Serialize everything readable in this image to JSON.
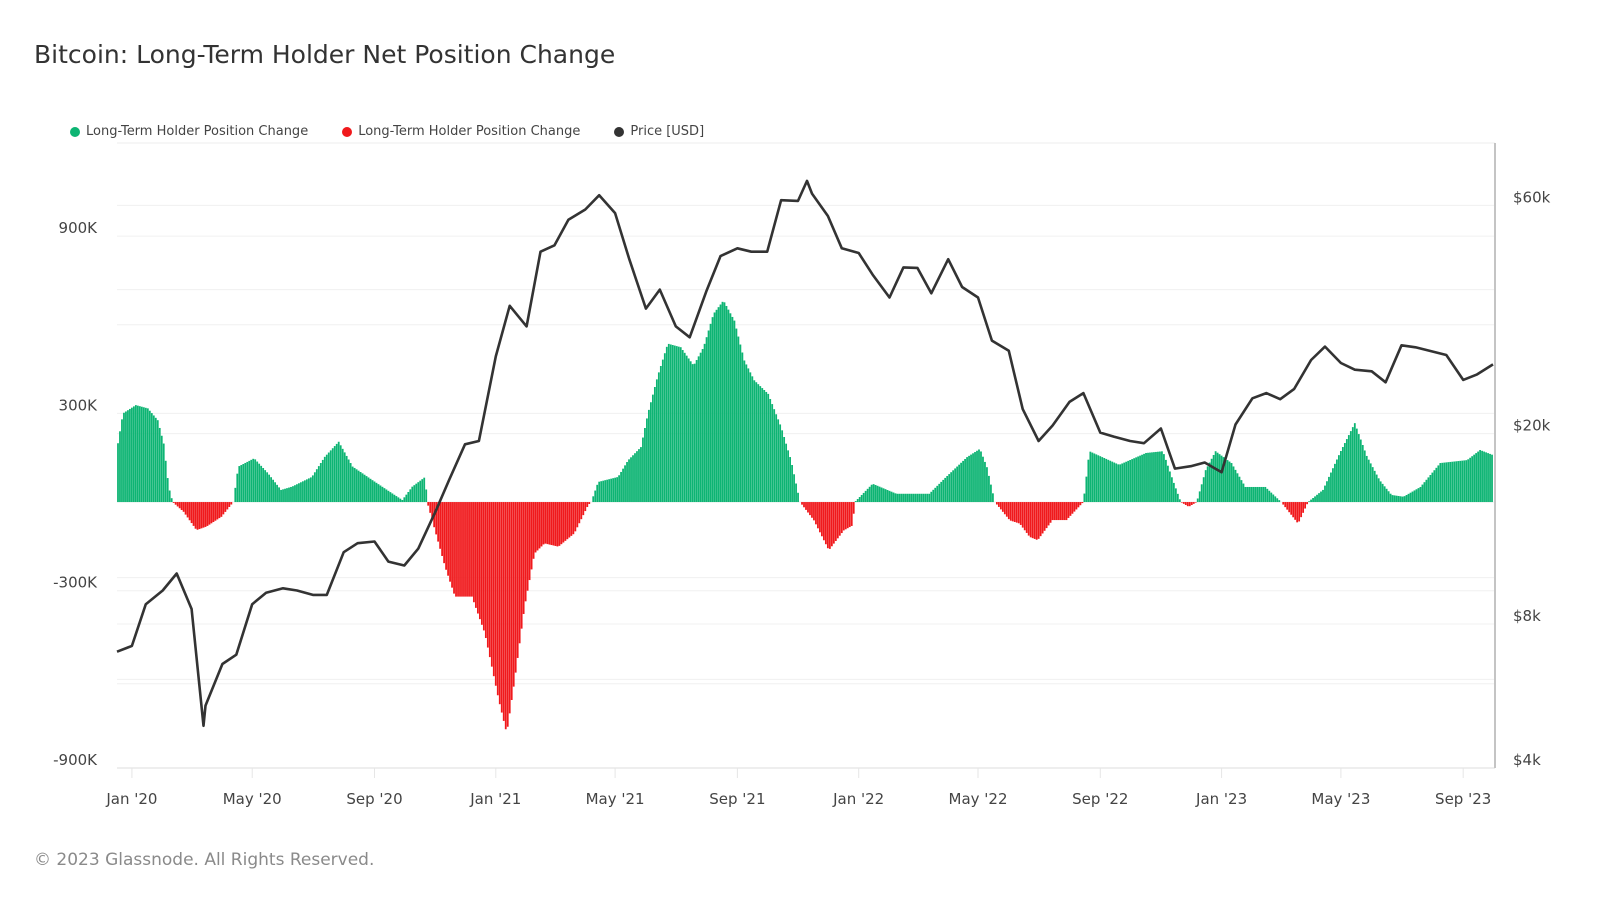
{
  "title": "Bitcoin: Long-Term Holder Net Position Change",
  "footer": "© 2023 Glassnode. All Rights Reserved.",
  "legend": [
    {
      "label": "Long-Term Holder Position Change",
      "color": "#0db473"
    },
    {
      "label": "Long-Term Holder Position Change",
      "color": "#f0191c"
    },
    {
      "label": "Price [USD]",
      "color": "#333333"
    }
  ],
  "chart_data": {
    "type": "bar+line",
    "title": "Bitcoin: Long-Term Holder Net Position Change",
    "legend_position": "top-left",
    "grid": true,
    "x_ticks": [
      "Jan '20",
      "May '20",
      "Sep '20",
      "Jan '21",
      "May '21",
      "Sep '21",
      "Jan '22",
      "May '22",
      "Sep '22",
      "Jan '23",
      "May '23",
      "Sep '23"
    ],
    "x_tick_dates": [
      "2020-01-01",
      "2020-05-01",
      "2020-09-01",
      "2021-01-01",
      "2021-05-01",
      "2021-09-01",
      "2022-01-01",
      "2022-05-01",
      "2022-09-01",
      "2023-01-01",
      "2023-05-01",
      "2023-09-01"
    ],
    "xlim": [
      "2019-12-17",
      "2023-10-03"
    ],
    "left_axis": {
      "scale": "linear",
      "ylim": [
        -900000,
        1215000
      ],
      "tick_labels": [
        "900K",
        "300K",
        "-300K",
        "-900K"
      ],
      "tick_values": [
        900000,
        300000,
        -300000,
        -900000
      ],
      "grid_values": [
        900000,
        600000,
        300000,
        0,
        -300000,
        -600000,
        -900000
      ]
    },
    "right_axis": {
      "scale": "log",
      "ylim": [
        4000,
        81000
      ],
      "tick_labels": [
        "$60k",
        "$20k",
        "$8k",
        "$4k"
      ],
      "tick_values": [
        60000,
        20000,
        8000,
        4000
      ],
      "grid_values": [
        60000,
        40000,
        20000,
        10000,
        8000,
        6000,
        4000
      ]
    },
    "series": [
      {
        "name": "Long-Term Holder Position Change",
        "type": "bar",
        "axis": "left",
        "positive_color": "#0db473",
        "negative_color": "#f0191c",
        "points": [
          [
            "2019-12-18",
            199000
          ],
          [
            "2019-12-23",
            300000
          ],
          [
            "2020-01-05",
            328000
          ],
          [
            "2020-01-17",
            317000
          ],
          [
            "2020-01-27",
            277000
          ],
          [
            "2020-02-02",
            198000
          ],
          [
            "2020-02-07",
            52000
          ],
          [
            "2020-02-11",
            0
          ],
          [
            "2020-02-22",
            -33000
          ],
          [
            "2020-03-06",
            -95000
          ],
          [
            "2020-03-16",
            -83000
          ],
          [
            "2020-03-31",
            -50000
          ],
          [
            "2020-04-12",
            0
          ],
          [
            "2020-04-17",
            120000
          ],
          [
            "2020-05-03",
            148000
          ],
          [
            "2020-05-17",
            97000
          ],
          [
            "2020-05-30",
            41000
          ],
          [
            "2020-06-10",
            52000
          ],
          [
            "2020-06-30",
            85000
          ],
          [
            "2020-07-13",
            153000
          ],
          [
            "2020-07-27",
            204000
          ],
          [
            "2020-08-10",
            120000
          ],
          [
            "2020-08-30",
            74000
          ],
          [
            "2020-09-19",
            29000
          ],
          [
            "2020-09-29",
            7000
          ],
          [
            "2020-10-09",
            52000
          ],
          [
            "2020-10-22",
            85000
          ],
          [
            "2020-10-24",
            0
          ],
          [
            "2020-11-11",
            -219000
          ],
          [
            "2020-11-21",
            -320000
          ],
          [
            "2020-12-08",
            -320000
          ],
          [
            "2020-12-21",
            -444000
          ],
          [
            "2021-01-04",
            -670000
          ],
          [
            "2021-01-12",
            -783000
          ],
          [
            "2021-01-20",
            -602000
          ],
          [
            "2021-01-30",
            -354000
          ],
          [
            "2021-02-09",
            -174000
          ],
          [
            "2021-02-19",
            -140000
          ],
          [
            "2021-03-05",
            -151000
          ],
          [
            "2021-03-21",
            -106000
          ],
          [
            "2021-04-04",
            -10000
          ],
          [
            "2021-04-07",
            0
          ],
          [
            "2021-04-14",
            68000
          ],
          [
            "2021-05-04",
            85000
          ],
          [
            "2021-05-14",
            141000
          ],
          [
            "2021-05-27",
            186000
          ],
          [
            "2021-06-03",
            299000
          ],
          [
            "2021-06-13",
            428000
          ],
          [
            "2021-06-23",
            536000
          ],
          [
            "2021-07-06",
            524000
          ],
          [
            "2021-07-19",
            462000
          ],
          [
            "2021-07-29",
            524000
          ],
          [
            "2021-08-08",
            637000
          ],
          [
            "2021-08-18",
            682000
          ],
          [
            "2021-08-29",
            614000
          ],
          [
            "2021-09-08",
            479000
          ],
          [
            "2021-09-18",
            412000
          ],
          [
            "2021-10-02",
            366000
          ],
          [
            "2021-10-15",
            254000
          ],
          [
            "2021-10-25",
            141000
          ],
          [
            "2021-11-03",
            0
          ],
          [
            "2021-11-17",
            -62000
          ],
          [
            "2021-12-02",
            -163000
          ],
          [
            "2021-12-17",
            -96000
          ],
          [
            "2021-12-26",
            -79000
          ],
          [
            "2021-12-28",
            0
          ],
          [
            "2022-01-02",
            17000
          ],
          [
            "2022-01-15",
            62000
          ],
          [
            "2022-02-08",
            28000
          ],
          [
            "2022-02-24",
            28000
          ],
          [
            "2022-03-13",
            28000
          ],
          [
            "2022-03-30",
            85000
          ],
          [
            "2022-04-20",
            152000
          ],
          [
            "2022-05-03",
            180000
          ],
          [
            "2022-05-10",
            118000
          ],
          [
            "2022-05-18",
            0
          ],
          [
            "2022-06-02",
            -62000
          ],
          [
            "2022-06-12",
            -73000
          ],
          [
            "2022-06-22",
            -118000
          ],
          [
            "2022-06-30",
            -129000
          ],
          [
            "2022-07-15",
            -61000
          ],
          [
            "2022-07-29",
            -61000
          ],
          [
            "2022-08-15",
            0
          ],
          [
            "2022-08-21",
            172000
          ],
          [
            "2022-09-20",
            126000
          ],
          [
            "2022-10-17",
            166000
          ],
          [
            "2022-11-03",
            172000
          ],
          [
            "2022-11-13",
            74000
          ],
          [
            "2022-11-21",
            0
          ],
          [
            "2022-11-29",
            -16000
          ],
          [
            "2022-12-07",
            0
          ],
          [
            "2022-12-16",
            108000
          ],
          [
            "2022-12-26",
            172000
          ],
          [
            "2023-01-11",
            132000
          ],
          [
            "2023-01-25",
            51000
          ],
          [
            "2023-02-14",
            51000
          ],
          [
            "2023-03-02",
            0
          ],
          [
            "2023-03-19",
            -73000
          ],
          [
            "2023-03-29",
            0
          ],
          [
            "2023-04-13",
            41000
          ],
          [
            "2023-04-30",
            166000
          ],
          [
            "2023-05-15",
            267000
          ],
          [
            "2023-05-27",
            156000
          ],
          [
            "2023-06-09",
            74000
          ],
          [
            "2023-06-21",
            24000
          ],
          [
            "2023-07-03",
            18000
          ],
          [
            "2023-07-20",
            51000
          ],
          [
            "2023-08-09",
            132000
          ],
          [
            "2023-09-05",
            142000
          ],
          [
            "2023-09-18",
            176000
          ],
          [
            "2023-10-01",
            159000
          ]
        ]
      },
      {
        "name": "Price [USD]",
        "type": "line",
        "axis": "right",
        "color": "#333333",
        "points": [
          [
            "2019-12-17",
            7000
          ],
          [
            "2020-01-01",
            7200
          ],
          [
            "2020-01-15",
            8800
          ],
          [
            "2020-02-01",
            9400
          ],
          [
            "2020-02-15",
            10200
          ],
          [
            "2020-03-01",
            8600
          ],
          [
            "2020-03-13",
            4900
          ],
          [
            "2020-03-15",
            5400
          ],
          [
            "2020-04-01",
            6600
          ],
          [
            "2020-04-15",
            6900
          ],
          [
            "2020-05-01",
            8800
          ],
          [
            "2020-05-15",
            9300
          ],
          [
            "2020-06-01",
            9500
          ],
          [
            "2020-06-15",
            9400
          ],
          [
            "2020-07-01",
            9200
          ],
          [
            "2020-07-15",
            9200
          ],
          [
            "2020-08-01",
            11300
          ],
          [
            "2020-08-15",
            11800
          ],
          [
            "2020-09-01",
            11900
          ],
          [
            "2020-09-15",
            10800
          ],
          [
            "2020-10-01",
            10600
          ],
          [
            "2020-10-15",
            11500
          ],
          [
            "2020-11-01",
            13700
          ],
          [
            "2020-11-15",
            16000
          ],
          [
            "2020-12-01",
            19000
          ],
          [
            "2020-12-15",
            19300
          ],
          [
            "2021-01-01",
            29000
          ],
          [
            "2021-01-15",
            37000
          ],
          [
            "2021-02-01",
            33500
          ],
          [
            "2021-02-15",
            48000
          ],
          [
            "2021-03-01",
            49500
          ],
          [
            "2021-03-15",
            56000
          ],
          [
            "2021-04-01",
            58800
          ],
          [
            "2021-04-15",
            63000
          ],
          [
            "2021-05-01",
            57800
          ],
          [
            "2021-05-15",
            46500
          ],
          [
            "2021-06-01",
            36500
          ],
          [
            "2021-06-15",
            40000
          ],
          [
            "2021-07-01",
            33500
          ],
          [
            "2021-07-15",
            31800
          ],
          [
            "2021-08-01",
            39800
          ],
          [
            "2021-08-15",
            47000
          ],
          [
            "2021-09-01",
            48800
          ],
          [
            "2021-09-15",
            48000
          ],
          [
            "2021-10-01",
            48000
          ],
          [
            "2021-10-15",
            61500
          ],
          [
            "2021-11-01",
            61300
          ],
          [
            "2021-11-10",
            67500
          ],
          [
            "2021-11-15",
            63500
          ],
          [
            "2021-12-01",
            57000
          ],
          [
            "2021-12-15",
            48800
          ],
          [
            "2022-01-01",
            47700
          ],
          [
            "2022-01-15",
            43000
          ],
          [
            "2022-02-01",
            38500
          ],
          [
            "2022-02-15",
            44500
          ],
          [
            "2022-03-01",
            44400
          ],
          [
            "2022-03-15",
            39300
          ],
          [
            "2022-04-01",
            46300
          ],
          [
            "2022-04-15",
            40500
          ],
          [
            "2022-05-01",
            38500
          ],
          [
            "2022-05-15",
            31300
          ],
          [
            "2022-06-01",
            29800
          ],
          [
            "2022-06-15",
            22500
          ],
          [
            "2022-07-01",
            19300
          ],
          [
            "2022-07-15",
            20800
          ],
          [
            "2022-08-01",
            23300
          ],
          [
            "2022-08-15",
            24300
          ],
          [
            "2022-09-01",
            20100
          ],
          [
            "2022-09-15",
            19700
          ],
          [
            "2022-10-01",
            19300
          ],
          [
            "2022-10-15",
            19100
          ],
          [
            "2022-11-01",
            20500
          ],
          [
            "2022-11-15",
            16900
          ],
          [
            "2022-12-01",
            17100
          ],
          [
            "2022-12-15",
            17400
          ],
          [
            "2023-01-01",
            16600
          ],
          [
            "2023-01-15",
            20900
          ],
          [
            "2023-02-01",
            23700
          ],
          [
            "2023-02-15",
            24300
          ],
          [
            "2023-03-01",
            23600
          ],
          [
            "2023-03-15",
            24800
          ],
          [
            "2023-04-01",
            28500
          ],
          [
            "2023-04-15",
            30400
          ],
          [
            "2023-05-01",
            28100
          ],
          [
            "2023-05-15",
            27200
          ],
          [
            "2023-06-01",
            27000
          ],
          [
            "2023-06-15",
            25600
          ],
          [
            "2023-07-01",
            30600
          ],
          [
            "2023-07-15",
            30300
          ],
          [
            "2023-08-01",
            29700
          ],
          [
            "2023-08-15",
            29200
          ],
          [
            "2023-09-01",
            25900
          ],
          [
            "2023-09-15",
            26600
          ],
          [
            "2023-10-01",
            27900
          ]
        ]
      }
    ]
  }
}
